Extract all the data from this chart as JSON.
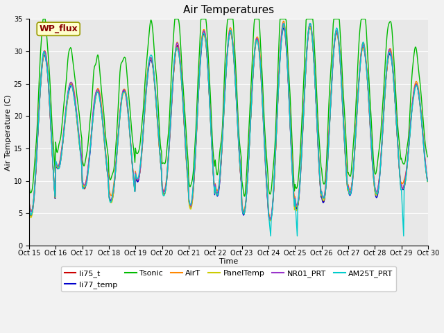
{
  "title": "Air Temperatures",
  "xlabel": "Time",
  "ylabel": "Air Temperature (C)",
  "ylim": [
    0,
    35
  ],
  "yticks": [
    0,
    5,
    10,
    15,
    20,
    25,
    30,
    35
  ],
  "x_tick_labels": [
    "Oct 15",
    "Oct 16",
    "Oct 17",
    "Oct 18",
    "Oct 19",
    "Oct 20",
    "Oct 21",
    "Oct 22",
    "Oct 23",
    "Oct 24",
    "Oct 25",
    "Oct 26",
    "Oct 27",
    "Oct 28",
    "Oct 29",
    "Oct 30"
  ],
  "series": [
    {
      "name": "li75_t",
      "color": "#cc0000",
      "lw": 1.0
    },
    {
      "name": "li77_temp",
      "color": "#0000cc",
      "lw": 1.0
    },
    {
      "name": "Tsonic",
      "color": "#00bb00",
      "lw": 1.0
    },
    {
      "name": "AirT",
      "color": "#ff8800",
      "lw": 1.0
    },
    {
      "name": "PanelTemp",
      "color": "#cccc00",
      "lw": 1.0
    },
    {
      "name": "NR01_PRT",
      "color": "#9933cc",
      "lw": 1.0
    },
    {
      "name": "AM25T_PRT",
      "color": "#00cccc",
      "lw": 1.0
    }
  ],
  "wp_flux_box": {
    "text": "WP_flux",
    "facecolor": "#ffffcc",
    "edgecolor": "#999900",
    "textcolor": "#880000",
    "fontsize": 9,
    "fontweight": "bold"
  },
  "plot_bg": "#e8e8e8",
  "fig_bg": "#f2f2f2",
  "grid_color": "#ffffff",
  "legend_ncol": 6,
  "legend_fontsize": 8,
  "tick_fontsize": 7,
  "title_fontsize": 11,
  "axis_label_fontsize": 8
}
